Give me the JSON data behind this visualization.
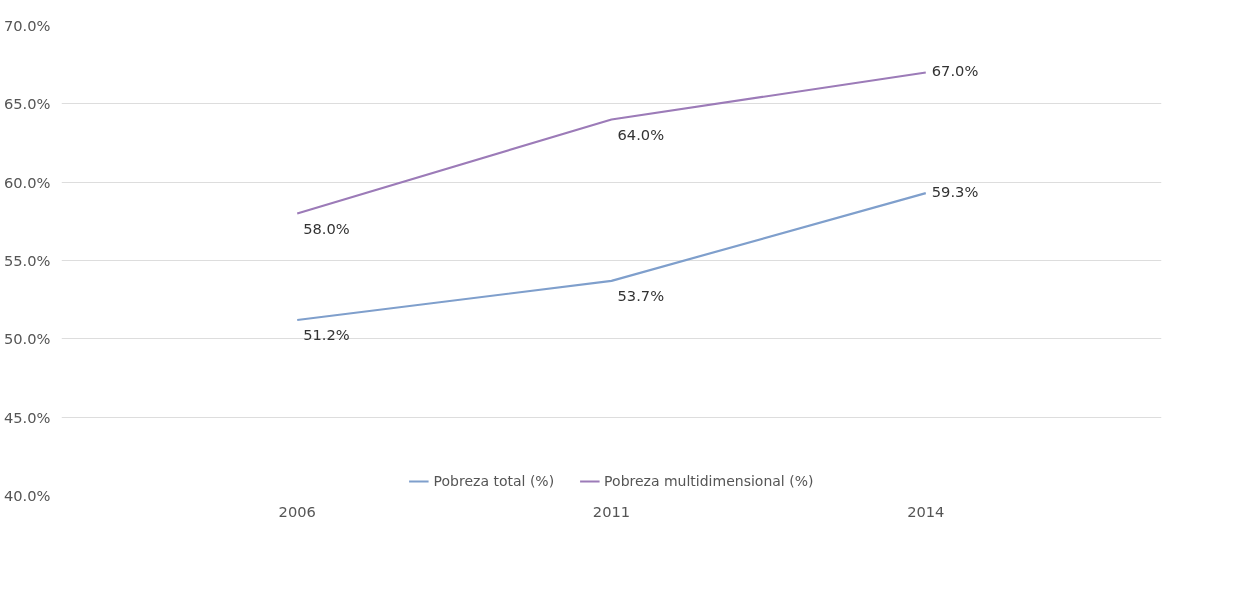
{
  "chart_data": {
    "type": "line",
    "categories": [
      "2006",
      "2011",
      "2014"
    ],
    "series": [
      {
        "name": "Pobreza total (%)",
        "color": "#7f9fcc",
        "values": [
          51.2,
          53.7,
          59.3
        ],
        "value_labels": [
          "51.2%",
          "53.7%",
          "59.3%"
        ]
      },
      {
        "name": "Pobreza multidimensional (%)",
        "color": "#9c7bb8",
        "values": [
          58.0,
          64.0,
          67.0
        ],
        "value_labels": [
          "58.0%",
          "64.0%",
          "67.0%"
        ]
      }
    ],
    "ylim": [
      40,
      70
    ],
    "yticks": [
      {
        "value": 40,
        "label": "40.0%"
      },
      {
        "value": 45,
        "label": "45.0%"
      },
      {
        "value": 50,
        "label": "50.0%"
      },
      {
        "value": 55,
        "label": "55.0%"
      },
      {
        "value": 60,
        "label": "60.0%"
      },
      {
        "value": 65,
        "label": "65.0%"
      },
      {
        "value": 70,
        "label": "70.0%"
      }
    ],
    "grid": "y",
    "legend": "bottom",
    "marker": "none",
    "line_style": "solid"
  }
}
